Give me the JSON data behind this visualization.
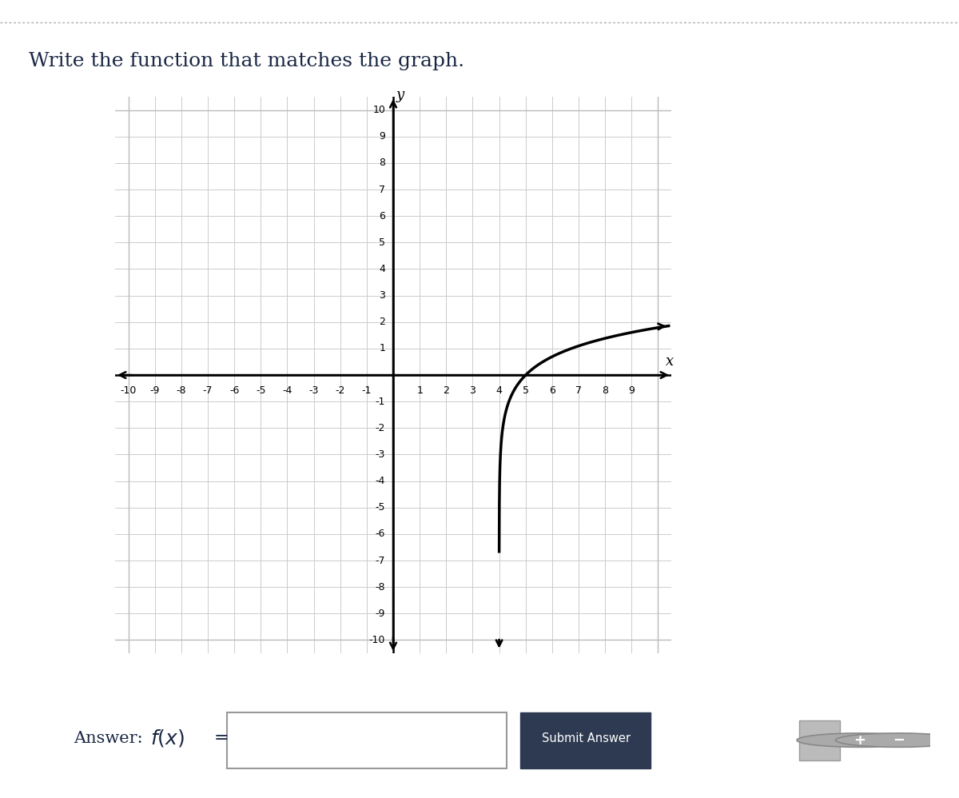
{
  "title": "Write the function that matches the graph.",
  "xlabel": "x",
  "ylabel": "y",
  "xlim": [
    -10.5,
    10.5
  ],
  "ylim": [
    -10.5,
    10.5
  ],
  "xticks": [
    -10,
    -9,
    -8,
    -7,
    -6,
    -5,
    -4,
    -3,
    -2,
    -1,
    1,
    2,
    3,
    4,
    5,
    6,
    7,
    8,
    9
  ],
  "yticks": [
    -10,
    -9,
    -8,
    -7,
    -6,
    -5,
    -4,
    -3,
    -2,
    -1,
    1,
    2,
    3,
    4,
    5,
    6,
    7,
    8,
    9,
    10
  ],
  "asymptote_x": 4.0,
  "curve_color": "#000000",
  "curve_linewidth": 2.5,
  "grid_color": "#cccccc",
  "background_color": "#ffffff",
  "page_bg": "#ffffff",
  "answer_bg": "#ebebeb",
  "title_color": "#1a2744",
  "title_fontsize": 18,
  "tick_fontsize": 9,
  "dashed_line_color": "#aaaaaa",
  "submit_btn_color": "#2d3a52",
  "answer_label": "Answer:  f(x) =",
  "submit_text": "Submit Answer"
}
